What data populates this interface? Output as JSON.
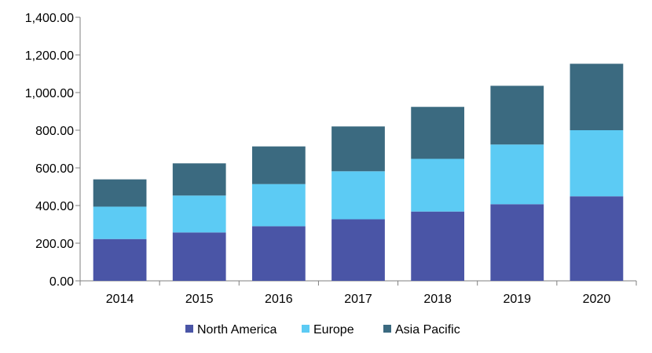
{
  "chart_data": {
    "type": "bar",
    "stacked": true,
    "categories": [
      "2014",
      "2015",
      "2016",
      "2017",
      "2018",
      "2019",
      "2020"
    ],
    "series": [
      {
        "name": "North America",
        "color": "#4a55a6",
        "values": [
          222,
          257,
          290,
          327,
          368,
          407,
          449
        ]
      },
      {
        "name": "Europe",
        "color": "#5ccbf4",
        "values": [
          172,
          196,
          224,
          255,
          280,
          317,
          351
        ]
      },
      {
        "name": "Asia Pacific",
        "color": "#3b6a80",
        "values": [
          145,
          171,
          200,
          238,
          276,
          312,
          353
        ]
      }
    ],
    "ylim": [
      0,
      1400
    ],
    "y_ticks": [
      0,
      200,
      400,
      600,
      800,
      1000,
      1200,
      1400
    ],
    "y_tick_labels": [
      "0.00",
      "200.00",
      "400.00",
      "600.00",
      "800.00",
      "1,000.00",
      "1,200.00",
      "1,400.00"
    ],
    "grid": false,
    "legend_position": "bottom"
  }
}
